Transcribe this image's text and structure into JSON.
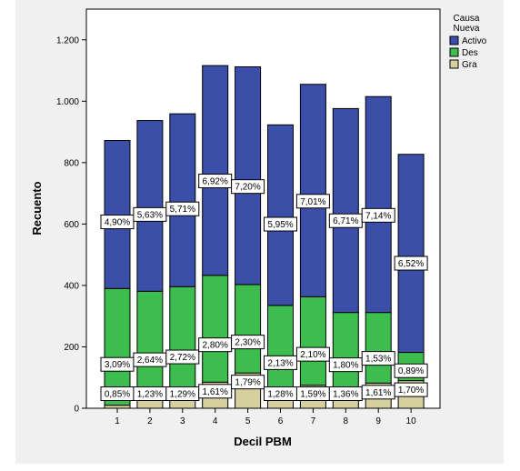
{
  "chart_data": {
    "type": "bar",
    "stacked": true,
    "xlabel": "Decil PBM",
    "ylabel": "Recuento",
    "ylim": [
      0,
      1300
    ],
    "y_ticks": [
      0,
      200,
      400,
      600,
      800,
      1000,
      1200
    ],
    "y_tick_labels": [
      "0",
      "200",
      "400",
      "600",
      "800",
      "1.000",
      "1.200"
    ],
    "categories": [
      "1",
      "2",
      "3",
      "4",
      "5",
      "6",
      "7",
      "8",
      "9",
      "10"
    ],
    "legend": {
      "title": "Causa\nNueva",
      "title_lines": [
        "Causa",
        "Nueva"
      ],
      "placement": "right"
    },
    "series": [
      {
        "name": "Gra",
        "color": "#d6cf9e",
        "values": [
          10,
          38,
          44,
          85,
          115,
          48,
          75,
          50,
          82,
          90
        ],
        "labels": [
          "0,85%",
          "1,23%",
          "1,29%",
          "1,61%",
          "1,79%",
          "1,28%",
          "1,59%",
          "1,36%",
          "1,61%",
          "1,70%"
        ]
      },
      {
        "name": "Des",
        "color": "#3dbd4d",
        "values": [
          380,
          343,
          352,
          348,
          288,
          287,
          288,
          262,
          230,
          92
        ],
        "labels": [
          "3,09%",
          "2,64%",
          "2,72%",
          "2,80%",
          "2,30%",
          "2,13%",
          "2,10%",
          "1,80%",
          "1,53%",
          "0,89%"
        ]
      },
      {
        "name": "Activo",
        "color": "#3b4fa8",
        "values": [
          482,
          556,
          563,
          683,
          709,
          588,
          692,
          664,
          703,
          645
        ],
        "labels": [
          "4,90%",
          "5,63%",
          "5,71%",
          "6,92%",
          "7,20%",
          "5,95%",
          "7,01%",
          "6,71%",
          "7,14%",
          "6,52%"
        ]
      }
    ],
    "grid": false
  }
}
